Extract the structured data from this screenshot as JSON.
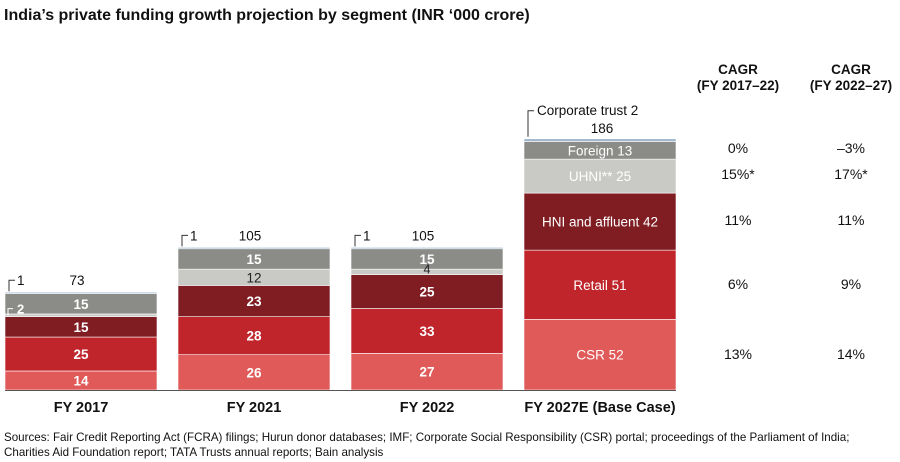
{
  "title": "India’s private funding growth projection by segment (INR ‘000 crore)",
  "cagr_headers": [
    {
      "line1": "CAGR",
      "line2": "(FY 2017–22)"
    },
    {
      "line1": "CAGR",
      "line2": "(FY 2022–27)"
    }
  ],
  "cagr_rows": [
    {
      "segment": "Foreign",
      "fy17_22": "0%",
      "fy22_27": "–3%"
    },
    {
      "segment": "UHNI",
      "fy17_22": "15%*",
      "fy22_27": "17%*"
    },
    {
      "segment": "HNI and affluent",
      "fy17_22": "11%",
      "fy22_27": "11%"
    },
    {
      "segment": "Retail",
      "fy17_22": "6%",
      "fy22_27": "9%"
    },
    {
      "segment": "CSR",
      "fy17_22": "13%",
      "fy22_27": "14%"
    }
  ],
  "sources": "Sources: Fair Credit Reporting Act (FCRA) filings; Hurun donor databases; IMF; Corporate Social Responsibility (CSR) portal; proceedings of the Parliament of India; Charities Aid Foundation report; TATA Trusts annual reports; Bain analysis",
  "chart_data": {
    "type": "bar",
    "stacked": true,
    "title": "India’s private funding growth projection by segment (INR ‘000 crore)",
    "categories": [
      "FY 2017",
      "FY 2021",
      "FY 2022",
      "FY 2027E (Base Case)"
    ],
    "totals": [
      "73",
      "105",
      "105",
      "186"
    ],
    "series": [
      {
        "name": "CSR",
        "color": "#e05a59",
        "values": [
          14,
          26,
          27,
          52
        ]
      },
      {
        "name": "Retail",
        "color": "#c0252b",
        "values": [
          25,
          28,
          33,
          51
        ]
      },
      {
        "name": "HNI and affluent",
        "color": "#7f1d22",
        "values": [
          15,
          23,
          25,
          42
        ]
      },
      {
        "name": "UHNI**",
        "color": "#c9c9c5",
        "values": [
          2,
          12,
          4,
          25
        ]
      },
      {
        "name": "Foreign",
        "color": "#8b8b88",
        "values": [
          15,
          15,
          15,
          13
        ]
      },
      {
        "name": "Corporate trust",
        "color": "#9fb6cc",
        "values": [
          1,
          1,
          1,
          2
        ]
      }
    ],
    "bar_labels": [
      [
        "14",
        "25",
        "15",
        "2",
        "15",
        "1"
      ],
      [
        "26",
        "28",
        "23",
        "12",
        "15",
        "1"
      ],
      [
        "27",
        "33",
        "25",
        "4",
        "15",
        "1"
      ],
      [
        "CSR 52",
        "Retail 51",
        "HNI and affluent 42",
        "UHNI** 25",
        "Foreign 13",
        "Corporate trust 2"
      ]
    ],
    "ylim": [
      0,
      186
    ]
  }
}
